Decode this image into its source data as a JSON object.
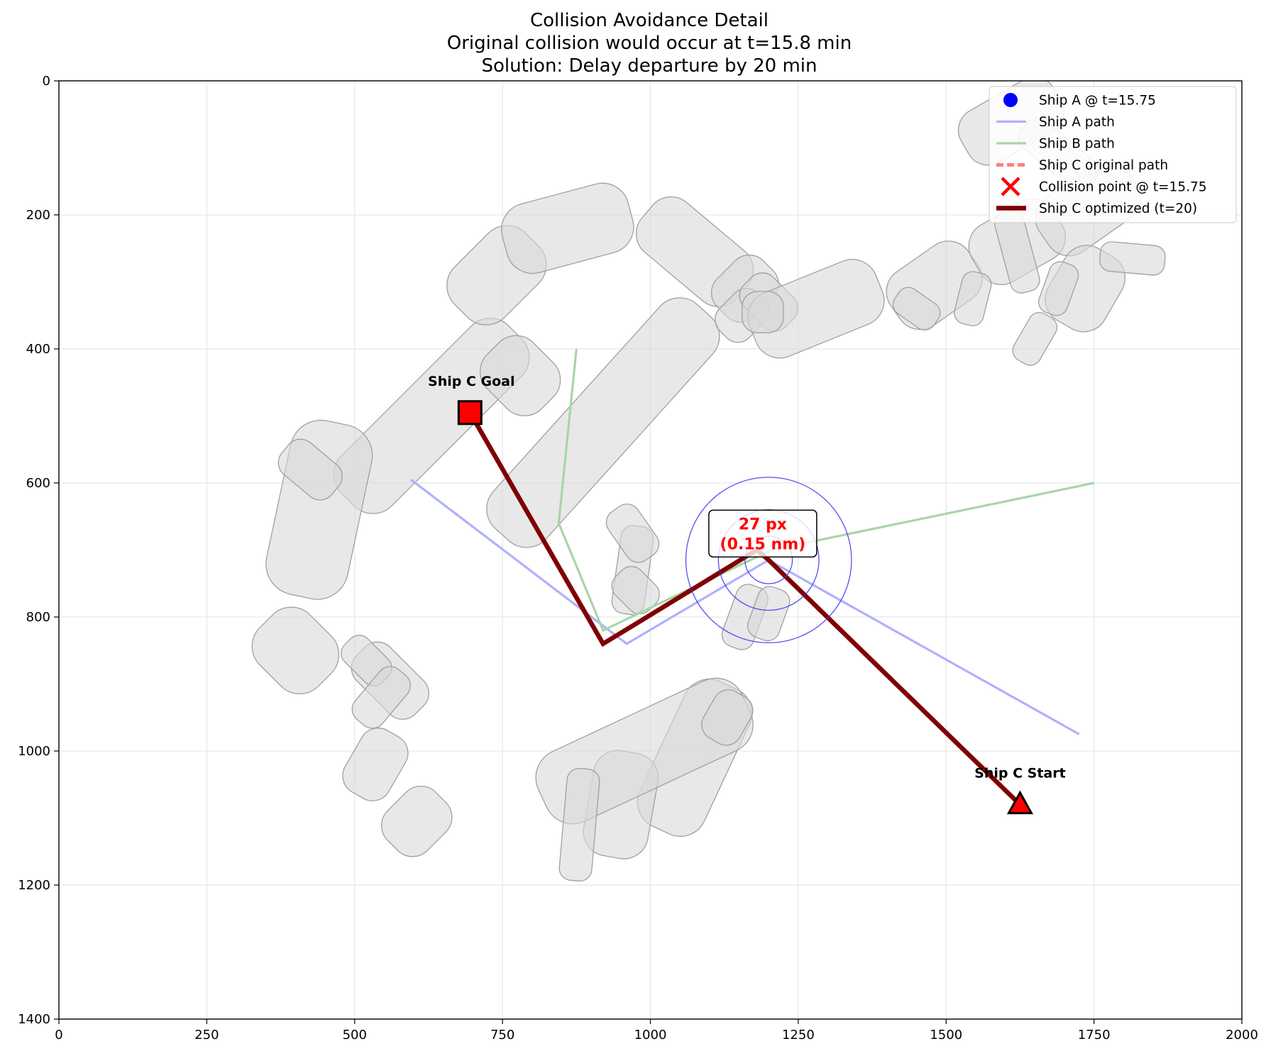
{
  "chart_data": {
    "type": "line",
    "title": "Collision Avoidance Detail",
    "subtitle_lines": [
      "Original collision would occur at t=15.8 min",
      "Solution: Delay departure by 20 min"
    ],
    "xlim": [
      0,
      2000
    ],
    "ylim": [
      1400,
      0
    ],
    "y_inverted": true,
    "grid": true,
    "x_ticks": [
      "0",
      "250",
      "500",
      "750",
      "1000",
      "1250",
      "1500",
      "1750",
      "2000"
    ],
    "y_ticks": [
      "0",
      "200",
      "400",
      "600",
      "800",
      "1000",
      "1200",
      "1400"
    ],
    "legend_position": "upper right",
    "legend": [
      {
        "label": "Ship A @ t=15.75",
        "kind": "dot",
        "color": "#0000ff"
      },
      {
        "label": "Ship A path",
        "kind": "line",
        "color": "#b0b0ff"
      },
      {
        "label": "Ship B path",
        "kind": "line",
        "color": "#a8d5a8"
      },
      {
        "label": "Ship C original path",
        "kind": "dashed-line",
        "color": "#ff8080"
      },
      {
        "label": "Collision point @ t=15.75",
        "kind": "x",
        "color": "#ff0000"
      },
      {
        "label": "Ship C optimized (t=20)",
        "kind": "thick-line",
        "color": "#800000"
      }
    ],
    "series": [
      {
        "name": "Ship A path",
        "color": "#b0b0ff",
        "points": [
          [
            595,
            595
          ],
          [
            960,
            840
          ],
          [
            1200,
            715
          ],
          [
            1725,
            975
          ]
        ]
      },
      {
        "name": "Ship B path",
        "color": "#a8d5a8",
        "points": [
          [
            875,
            400
          ],
          [
            845,
            660
          ],
          [
            920,
            820
          ],
          [
            1205,
            700
          ],
          [
            1750,
            600
          ]
        ]
      },
      {
        "name": "Ship C optimized (t=20)",
        "color": "#800000",
        "points": [
          [
            695,
            495
          ],
          [
            920,
            840
          ],
          [
            1180,
            700
          ],
          [
            1200,
            715
          ],
          [
            1625,
            1080
          ]
        ]
      }
    ],
    "ship_a_position": [
      1200,
      715
    ],
    "safety_circles_radii": [
      40,
      85,
      140
    ],
    "ship_c_start": {
      "label": "Ship C Start",
      "point": [
        1625,
        1080
      ]
    },
    "ship_c_goal": {
      "label": "Ship C Goal",
      "point": [
        695,
        495
      ]
    },
    "distance_annotation": {
      "text_line1": "27 px",
      "text_line2": "(0.15 nm)",
      "point": [
        1190,
        685
      ]
    },
    "obstacles": [
      {
        "center": [
          630,
          500
        ],
        "length": 400,
        "width": 120,
        "angle": -45
      },
      {
        "center": [
          440,
          640
        ],
        "length": 300,
        "width": 140,
        "angle": -78
      },
      {
        "center": [
          400,
          850
        ],
        "length": 140,
        "width": 120,
        "angle": 45
      },
      {
        "center": [
          740,
          290
        ],
        "length": 170,
        "width": 120,
        "angle": -45
      },
      {
        "center": [
          860,
          220
        ],
        "length": 220,
        "width": 120,
        "angle": -15
      },
      {
        "center": [
          1075,
          255
        ],
        "length": 210,
        "width": 110,
        "angle": 40
      },
      {
        "center": [
          1160,
          310
        ],
        "length": 110,
        "width": 90,
        "angle": -45
      },
      {
        "center": [
          920,
          510
        ],
        "length": 510,
        "width": 120,
        "angle": -48
      },
      {
        "center": [
          1155,
          350
        ],
        "length": 90,
        "width": 70,
        "angle": -45
      },
      {
        "center": [
          1200,
          330
        ],
        "length": 100,
        "width": 70,
        "angle": 45
      },
      {
        "center": [
          780,
          440
        ],
        "length": 130,
        "width": 110,
        "angle": 45
      },
      {
        "center": [
          1280,
          340
        ],
        "length": 230,
        "width": 115,
        "angle": -22
      },
      {
        "center": [
          1480,
          305
        ],
        "length": 160,
        "width": 110,
        "angle": -35
      },
      {
        "center": [
          1620,
          240
        ],
        "length": 160,
        "width": 110,
        "angle": -30
      },
      {
        "center": [
          1740,
          190
        ],
        "length": 180,
        "width": 110,
        "angle": -35
      },
      {
        "center": [
          1735,
          310
        ],
        "length": 140,
        "width": 110,
        "angle": -60
      },
      {
        "center": [
          1610,
          60
        ],
        "length": 180,
        "width": 100,
        "angle": -30
      },
      {
        "center": [
          1620,
          255
        ],
        "length": 140,
        "width": 50,
        "angle": 75
      },
      {
        "center": [
          1545,
          325
        ],
        "length": 90,
        "width": 50,
        "angle": -76
      },
      {
        "center": [
          1690,
          310
        ],
        "length": 90,
        "width": 50,
        "angle": -70
      },
      {
        "center": [
          1650,
          385
        ],
        "length": 90,
        "width": 50,
        "angle": -60
      },
      {
        "center": [
          1450,
          340
        ],
        "length": 80,
        "width": 50,
        "angle": 35
      },
      {
        "center": [
          1815,
          265
        ],
        "length": 110,
        "width": 50,
        "angle": 5
      },
      {
        "center": [
          1075,
          1010
        ],
        "length": 270,
        "width": 120,
        "angle": -65
      },
      {
        "center": [
          950,
          1080
        ],
        "length": 180,
        "width": 110,
        "angle": -80
      },
      {
        "center": [
          990,
          1000
        ],
        "length": 380,
        "width": 130,
        "angle": -25
      },
      {
        "center": [
          605,
          1105
        ],
        "length": 115,
        "width": 95,
        "angle": -45
      },
      {
        "center": [
          535,
          1020
        ],
        "length": 120,
        "width": 85,
        "angle": -60
      },
      {
        "center": [
          560,
          895
        ],
        "length": 140,
        "width": 80,
        "angle": 45
      },
      {
        "center": [
          520,
          865
        ],
        "length": 90,
        "width": 55,
        "angle": 45
      },
      {
        "center": [
          545,
          920
        ],
        "length": 110,
        "width": 60,
        "angle": -50
      },
      {
        "center": [
          970,
          730
        ],
        "length": 150,
        "width": 55,
        "angle": -82
      },
      {
        "center": [
          975,
          760
        ],
        "length": 80,
        "width": 60,
        "angle": 45
      },
      {
        "center": [
          970,
          675
        ],
        "length": 100,
        "width": 60,
        "angle": 55
      },
      {
        "center": [
          1190,
          345
        ],
        "length": 70,
        "width": 70,
        "angle": 0
      },
      {
        "center": [
          1160,
          800
        ],
        "length": 110,
        "width": 55,
        "angle": -70
      },
      {
        "center": [
          1200,
          795
        ],
        "length": 90,
        "width": 55,
        "angle": -70
      },
      {
        "center": [
          1130,
          950
        ],
        "length": 90,
        "width": 70,
        "angle": -60
      },
      {
        "center": [
          880,
          1110
        ],
        "length": 190,
        "width": 55,
        "angle": -85
      },
      {
        "center": [
          425,
          580
        ],
        "length": 110,
        "width": 70,
        "angle": 40
      },
      {
        "center": [
          1690,
          110
        ],
        "length": 150,
        "width": 60,
        "angle": 40
      }
    ]
  }
}
